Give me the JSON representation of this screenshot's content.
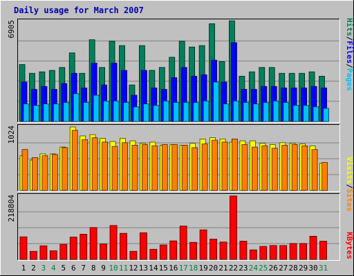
{
  "title": "Daily usage for March 2007",
  "colors": {
    "frame_bg": "#c0c0c0",
    "panel_bg": "#c0c0c0",
    "title": "#0000b0",
    "hits": "#00805c",
    "files": "#0000ff",
    "pages": "#00c0ff",
    "visits": "#ffff00",
    "sites": "#ff8000",
    "kbytes": "#ff0000",
    "weekday_label": "#000000",
    "weekend_label": "#008040",
    "slash": "#000000"
  },
  "chart_data": [
    {
      "type": "bar",
      "panel": "hits-files-pages",
      "ymax_label": "6905",
      "ylim": [
        0,
        6905
      ],
      "categories": [
        "1",
        "2",
        "3",
        "4",
        "5",
        "6",
        "7",
        "8",
        "9",
        "10",
        "11",
        "12",
        "13",
        "14",
        "15",
        "16",
        "17",
        "18",
        "19",
        "20",
        "21",
        "22",
        "23",
        "24",
        "25",
        "26",
        "27",
        "28",
        "29",
        "30",
        "31"
      ],
      "legend": [
        {
          "label": "Pages",
          "color_key": "pages"
        },
        {
          "label": "Files",
          "color_key": "files"
        },
        {
          "label": "Hits",
          "color_key": "hits"
        }
      ],
      "series": [
        {
          "name": "Hits",
          "color_key": "hits",
          "values": [
            3900,
            3300,
            3400,
            3500,
            3700,
            4700,
            3300,
            5600,
            3700,
            5500,
            5200,
            2500,
            5200,
            3500,
            3700,
            4400,
            5500,
            5100,
            5200,
            6700,
            4100,
            6900,
            3100,
            3400,
            3700,
            3700,
            3300,
            3300,
            3300,
            3400,
            3100
          ]
        },
        {
          "name": "Files",
          "color_key": "files",
          "values": [
            2700,
            2200,
            2400,
            2200,
            2600,
            3300,
            2300,
            4000,
            2500,
            4000,
            3500,
            1800,
            3500,
            2300,
            2200,
            3000,
            3700,
            3100,
            3200,
            4200,
            2700,
            5400,
            2200,
            2200,
            2400,
            2400,
            2300,
            2300,
            2300,
            2400,
            2300
          ]
        },
        {
          "name": "Pages",
          "color_key": "pages",
          "values": [
            1200,
            1100,
            1200,
            1200,
            1300,
            1900,
            1300,
            1800,
            1400,
            1400,
            1300,
            1000,
            1200,
            1100,
            1400,
            1300,
            1300,
            1300,
            1400,
            2700,
            1200,
            1400,
            1300,
            1200,
            1300,
            1400,
            1300,
            1100,
            1100,
            1000,
            900
          ]
        }
      ]
    },
    {
      "type": "bar",
      "panel": "visits-sites",
      "ymax_label": "1024",
      "ylim": [
        0,
        1024
      ],
      "categories": [
        "1",
        "2",
        "3",
        "4",
        "5",
        "6",
        "7",
        "8",
        "9",
        "10",
        "11",
        "12",
        "13",
        "14",
        "15",
        "16",
        "17",
        "18",
        "19",
        "20",
        "21",
        "22",
        "23",
        "24",
        "25",
        "26",
        "27",
        "28",
        "29",
        "30",
        "31"
      ],
      "legend": [
        {
          "label": "Sites",
          "color_key": "sites"
        },
        {
          "label": "Visits",
          "color_key": "visits"
        }
      ],
      "series": [
        {
          "name": "Visits",
          "color_key": "visits",
          "values": [
            560,
            490,
            590,
            590,
            700,
            1024,
            880,
            900,
            840,
            790,
            840,
            800,
            760,
            780,
            730,
            740,
            730,
            760,
            830,
            850,
            830,
            780,
            800,
            800,
            760,
            740,
            770,
            760,
            750,
            720,
            440
          ]
        },
        {
          "name": "Sites",
          "color_key": "sites",
          "values": [
            660,
            530,
            560,
            580,
            690,
            970,
            820,
            850,
            780,
            710,
            770,
            730,
            740,
            720,
            740,
            740,
            730,
            690,
            750,
            810,
            780,
            830,
            740,
            700,
            720,
            680,
            730,
            740,
            720,
            660,
            450
          ]
        }
      ]
    },
    {
      "type": "bar",
      "panel": "kbytes",
      "ymax_label": "218804",
      "ylim": [
        0,
        218804
      ],
      "categories": [
        "1",
        "2",
        "3",
        "4",
        "5",
        "6",
        "7",
        "8",
        "9",
        "10",
        "11",
        "12",
        "13",
        "14",
        "15",
        "16",
        "17",
        "18",
        "19",
        "20",
        "21",
        "22",
        "23",
        "24",
        "25",
        "26",
        "27",
        "28",
        "29",
        "30",
        "31"
      ],
      "legend": [
        {
          "label": "KBytes",
          "color_key": "kbytes"
        }
      ],
      "series": [
        {
          "name": "KBytes",
          "color_key": "kbytes",
          "values": [
            78000,
            28000,
            47000,
            30000,
            52000,
            77000,
            87000,
            110000,
            53000,
            117000,
            90000,
            28000,
            92000,
            35000,
            50000,
            64000,
            115000,
            59000,
            102000,
            70000,
            60000,
            218804,
            63000,
            33000,
            45000,
            48000,
            48000,
            55000,
            55000,
            80000,
            63000
          ]
        }
      ]
    }
  ],
  "x_labels": [
    {
      "text": "1",
      "weekend": false
    },
    {
      "text": "2",
      "weekend": false
    },
    {
      "text": "3",
      "weekend": true
    },
    {
      "text": "4",
      "weekend": true
    },
    {
      "text": "5",
      "weekend": false
    },
    {
      "text": "6",
      "weekend": false
    },
    {
      "text": "7",
      "weekend": false
    },
    {
      "text": "8",
      "weekend": false
    },
    {
      "text": "9",
      "weekend": false
    },
    {
      "text": "10",
      "weekend": true
    },
    {
      "text": "11",
      "weekend": true
    },
    {
      "text": "12",
      "weekend": false
    },
    {
      "text": "13",
      "weekend": false
    },
    {
      "text": "14",
      "weekend": false
    },
    {
      "text": "15",
      "weekend": false
    },
    {
      "text": "16",
      "weekend": false
    },
    {
      "text": "17",
      "weekend": true
    },
    {
      "text": "18",
      "weekend": true
    },
    {
      "text": "19",
      "weekend": false
    },
    {
      "text": "20",
      "weekend": false
    },
    {
      "text": "21",
      "weekend": false
    },
    {
      "text": "22",
      "weekend": false
    },
    {
      "text": "23",
      "weekend": false
    },
    {
      "text": "24",
      "weekend": true
    },
    {
      "text": "25",
      "weekend": true
    },
    {
      "text": "26",
      "weekend": false
    },
    {
      "text": "27",
      "weekend": false
    },
    {
      "text": "28",
      "weekend": false
    },
    {
      "text": "29",
      "weekend": false
    },
    {
      "text": "30",
      "weekend": false
    },
    {
      "text": "31",
      "weekend": true
    }
  ]
}
